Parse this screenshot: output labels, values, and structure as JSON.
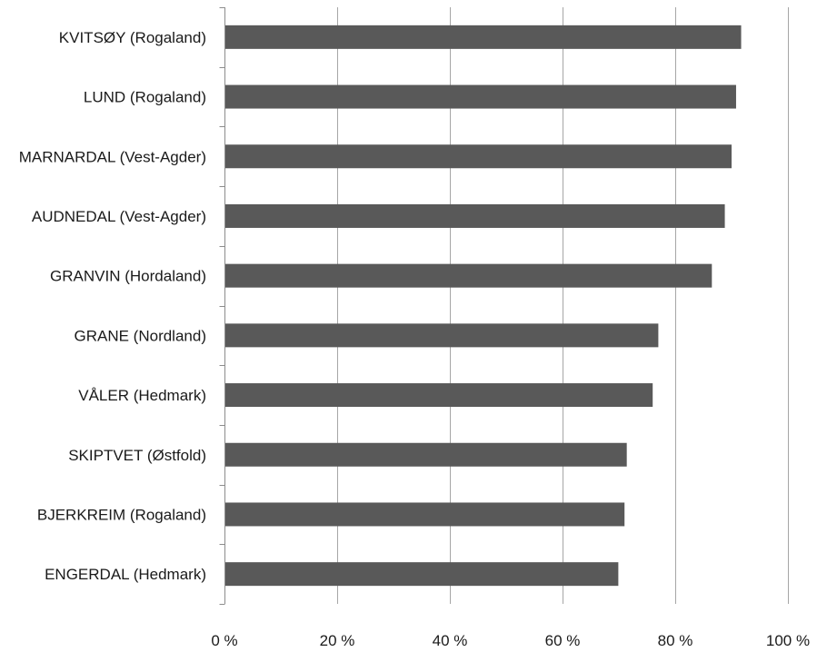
{
  "chart_data": {
    "type": "bar",
    "orientation": "horizontal",
    "title": "",
    "xlabel": "",
    "ylabel": "",
    "categories": [
      "KVITSØY (Rogaland)",
      "LUND (Rogaland)",
      "MARNARDAL (Vest-Agder)",
      "AUDNEDAL (Vest-Agder)",
      "GRANVIN (Hordaland)",
      "GRANE (Nordland)",
      "VÅLER (Hedmark)",
      "SKIPTVET (Østfold)",
      "BJERKREIM (Rogaland)",
      "ENGERDAL (Hedmark)"
    ],
    "values": [
      91.7,
      90.8,
      90.0,
      88.8,
      86.5,
      77.0,
      76.0,
      71.4,
      71.0,
      69.9
    ],
    "xlim": [
      0,
      100
    ],
    "x_ticks": [
      0,
      20,
      40,
      60,
      80,
      100
    ],
    "x_tick_labels": [
      "0 %",
      "20 %",
      "40 %",
      "60 %",
      "80 %",
      "100 %"
    ],
    "grid": "vertical",
    "legend": "none",
    "bar_color": "#595959",
    "grid_color": "#a6a6a6"
  }
}
